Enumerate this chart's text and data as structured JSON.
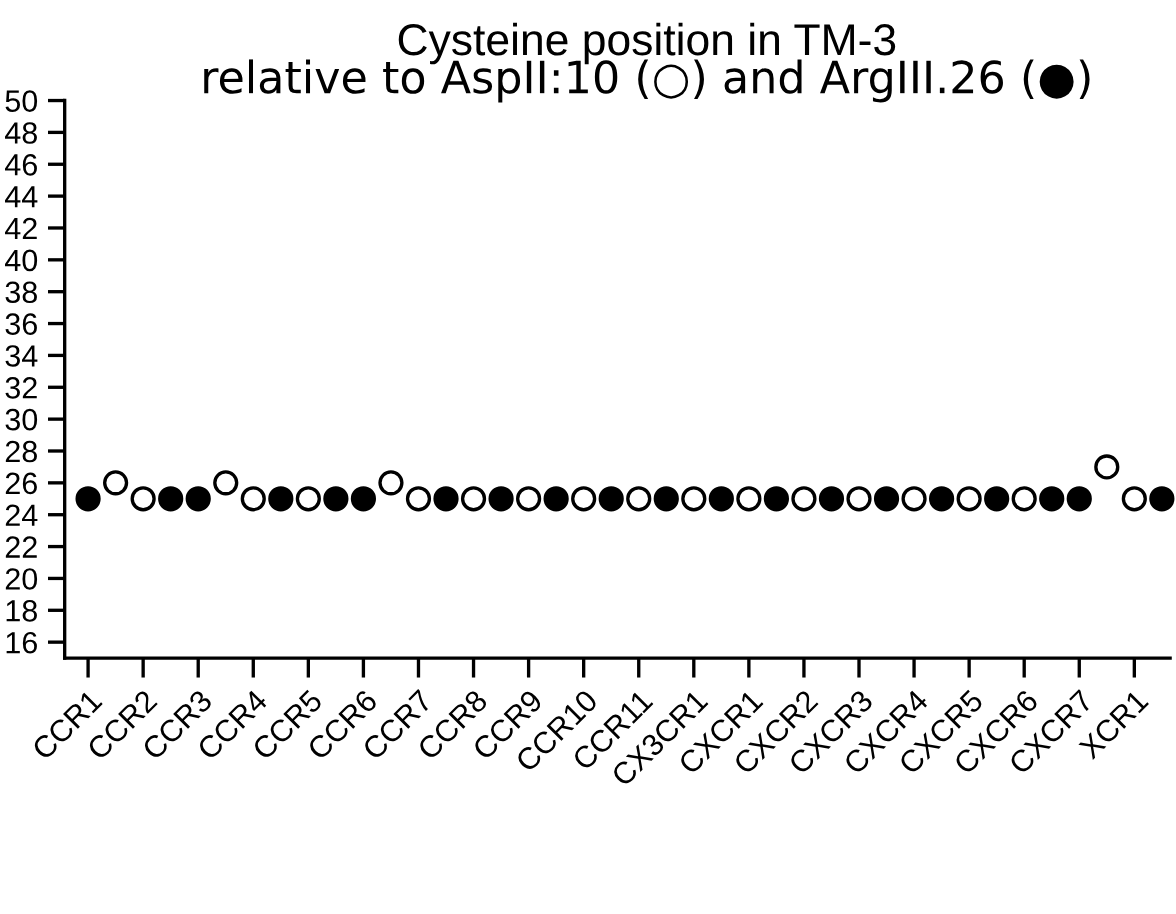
{
  "chart_data": {
    "type": "scatter",
    "title": "Cysteine position in TM-3",
    "subtitle": "relative to AspII:10 (○) and ArgIII.26 (●)",
    "marker": "circle",
    "grid": false,
    "legend": false,
    "ylim": [
      15,
      50
    ],
    "yticks": [
      16,
      18,
      20,
      22,
      24,
      26,
      28,
      30,
      32,
      34,
      36,
      38,
      40,
      42,
      44,
      46,
      48,
      50
    ],
    "categories": [
      "CCR1",
      null,
      "CCR2",
      null,
      "CCR3",
      null,
      "CCR4",
      null,
      "CCR5",
      null,
      "CCR6",
      null,
      "CCR7",
      null,
      "CCR8",
      null,
      "CCR9",
      null,
      "CCR10",
      null,
      "CCR11",
      null,
      "CX3CR1",
      null,
      "CXCR1",
      null,
      "CXCR2",
      null,
      "CXCR3",
      null,
      "CXCR4",
      null,
      "CXCR5",
      null,
      "CXCR6",
      null,
      "CXCR7",
      null,
      "XCR1",
      null
    ],
    "series": [
      {
        "color": "#000000",
        "values": [
          25,
          null,
          null,
          25,
          25,
          null,
          null,
          25,
          null,
          25,
          25,
          null,
          null,
          25,
          null,
          25,
          null,
          25,
          null,
          25,
          null,
          25,
          null,
          25,
          null,
          25,
          null,
          25,
          null,
          25,
          null,
          25,
          null,
          25,
          null,
          25,
          25,
          null,
          null,
          25
        ]
      },
      {
        "color": "#ffffff",
        "values": [
          null,
          26,
          25,
          null,
          null,
          26,
          25,
          null,
          25,
          null,
          null,
          26,
          25,
          null,
          25,
          null,
          25,
          null,
          25,
          null,
          25,
          null,
          25,
          null,
          25,
          null,
          25,
          null,
          25,
          null,
          25,
          null,
          25,
          null,
          25,
          null,
          null,
          27,
          25,
          null
        ]
      }
    ]
  }
}
